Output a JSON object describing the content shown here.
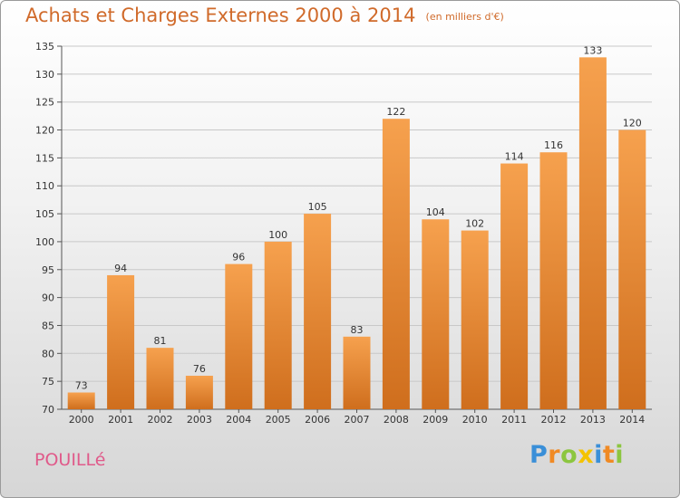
{
  "chart_data": {
    "type": "bar",
    "title": "Achats et Charges Externes 2000 à 2014",
    "subtitle": "(en milliers d'€)",
    "categories": [
      "2000",
      "2001",
      "2002",
      "2003",
      "2004",
      "2005",
      "2006",
      "2007",
      "2008",
      "2009",
      "2010",
      "2011",
      "2012",
      "2013",
      "2014"
    ],
    "values": [
      73,
      94,
      81,
      76,
      96,
      100,
      105,
      83,
      122,
      104,
      102,
      114,
      116,
      133,
      120
    ],
    "xlabel": "",
    "ylabel": "",
    "ylim": [
      70,
      135
    ],
    "yticks": [
      70,
      75,
      80,
      85,
      90,
      95,
      100,
      105,
      110,
      115,
      120,
      125,
      130,
      135
    ],
    "grid": true,
    "legend": "none",
    "bar_color_top": "#f6a14e",
    "bar_color_bottom": "#cf6e1d",
    "title_color": "#d06a2a"
  },
  "location": "POUILLé",
  "brand": {
    "text": "Proxiti",
    "letter_colors": [
      "#3a8fd8",
      "#f08a24",
      "#8cc63f",
      "#f4c300",
      "#3a8fd8",
      "#f08a24",
      "#8cc63f"
    ]
  }
}
